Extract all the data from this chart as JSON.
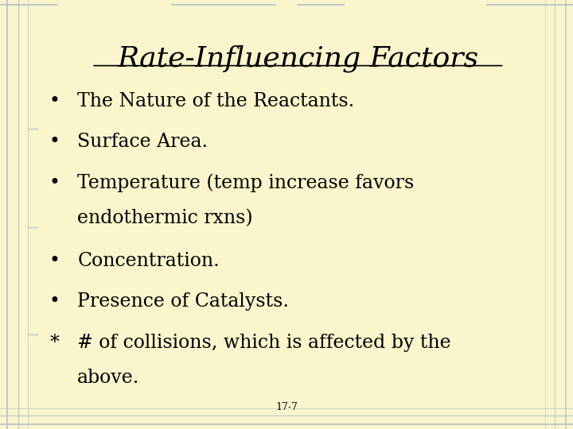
{
  "title": "Rate-Influencing Factors",
  "background_color": "#FAF5CC",
  "title_fontsize": 26,
  "title_color": "#000000",
  "bullet_items": [
    {
      "marker": "•",
      "line1": "The Nature of the Reactants.",
      "line2": null
    },
    {
      "marker": "•",
      "line1": "Surface Area.",
      "line2": null
    },
    {
      "marker": "•",
      "line1": "Temperature (temp increase favors",
      "line2": "endothermic rxns)"
    },
    {
      "marker": "•",
      "line1": "Concentration.",
      "line2": null
    },
    {
      "marker": "•",
      "line1": "Presence of Catalysts.",
      "line2": null
    },
    {
      "marker": "*",
      "line1": "# of collisions, which is affected by the",
      "line2": "above."
    }
  ],
  "bullet_fontsize": 17,
  "text_color": "#000000",
  "footer_text": "17-7",
  "footer_fontsize": 9,
  "border_color_left": "#AABBCC",
  "border_color_right": "#BBCCBB"
}
